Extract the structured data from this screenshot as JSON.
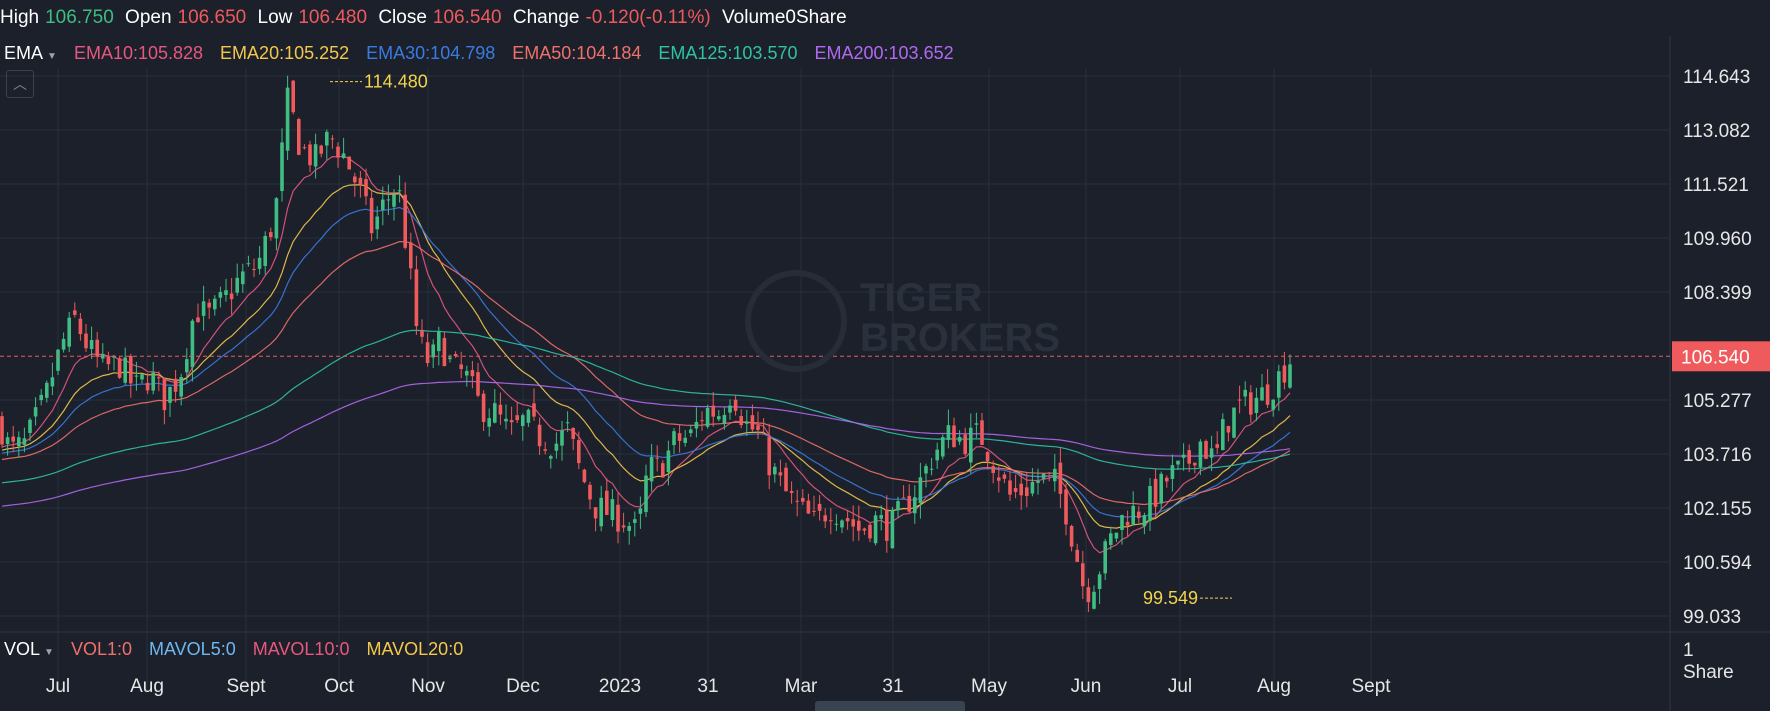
{
  "header": {
    "high_label": "High",
    "high": "106.750",
    "open_label": "Open",
    "open": "106.650",
    "low_label": "Low",
    "low": "106.480",
    "close_label": "Close",
    "close": "106.540",
    "change_label": "Change",
    "change": "-0.120(-0.11%)",
    "volume_label": "Volume",
    "volume": "0Share"
  },
  "ema": {
    "label": "EMA",
    "items": [
      {
        "text": "EMA10:105.828",
        "color": "#e8577e"
      },
      {
        "text": "EMA20:105.252",
        "color": "#f3c84b"
      },
      {
        "text": "EMA30:104.798",
        "color": "#3a7be0"
      },
      {
        "text": "EMA50:104.184",
        "color": "#f0706b"
      },
      {
        "text": "EMA125:103.570",
        "color": "#2fc2a5"
      },
      {
        "text": "EMA200:103.652",
        "color": "#b268f0"
      }
    ]
  },
  "vol": {
    "label": "VOL",
    "items": [
      {
        "text": "VOL1:0",
        "color": "#f0706b"
      },
      {
        "text": "MAVOL5:0",
        "color": "#6fb7f0"
      },
      {
        "text": "MAVOL10:0",
        "color": "#e8577e"
      },
      {
        "text": "MAVOL20:0",
        "color": "#f3c84b"
      }
    ],
    "axis_value": "1",
    "axis_unit": "Share"
  },
  "watermark": [
    "TIGER",
    "BROKERS"
  ],
  "colors": {
    "up": "#3fbd83",
    "down": "#ef5a5d",
    "grid": "#2a313c",
    "bg": "#1b202a",
    "last_price_bg": "#ef5a5d",
    "annotation": "#f3d44b"
  },
  "chart_data": {
    "type": "candlestick",
    "ylim": [
      98.5,
      115.5
    ],
    "y_ticks": [
      "114.643",
      "113.082",
      "111.521",
      "109.960",
      "108.399",
      "105.277",
      "103.716",
      "102.155",
      "100.594",
      "99.033"
    ],
    "y_tick_values": [
      114.643,
      113.082,
      111.521,
      109.96,
      108.399,
      105.277,
      103.716,
      102.155,
      100.594,
      99.033
    ],
    "last_price": "106.540",
    "x_labels": [
      "Jul",
      "Aug",
      "Sept",
      "Oct",
      "Nov",
      "Dec",
      "2023",
      "31",
      "Mar",
      "31",
      "May",
      "Jun",
      "Jul",
      "Aug",
      "Sept"
    ],
    "annotations": [
      {
        "text": "114.480",
        "type": "high"
      },
      {
        "text": "99.549",
        "type": "low"
      }
    ],
    "close_path_anchors": [
      [
        0,
        104.6
      ],
      [
        10,
        103.8
      ],
      [
        25,
        104.0
      ],
      [
        45,
        105.3
      ],
      [
        62,
        106.9
      ],
      [
        75,
        107.6
      ],
      [
        88,
        106.8
      ],
      [
        102,
        106.2
      ],
      [
        120,
        106.3
      ],
      [
        135,
        105.6
      ],
      [
        150,
        106.0
      ],
      [
        165,
        105.3
      ],
      [
        180,
        106.0
      ],
      [
        195,
        107.9
      ],
      [
        210,
        107.7
      ],
      [
        225,
        108.2
      ],
      [
        240,
        108.8
      ],
      [
        258,
        109.2
      ],
      [
        275,
        110.6
      ],
      [
        288,
        114.0
      ],
      [
        300,
        112.6
      ],
      [
        315,
        112.2
      ],
      [
        330,
        112.9
      ],
      [
        345,
        112.3
      ],
      [
        360,
        111.3
      ],
      [
        372,
        110.2
      ],
      [
        385,
        111.0
      ],
      [
        398,
        111.5
      ],
      [
        410,
        108.9
      ],
      [
        418,
        107.0
      ],
      [
        430,
        106.3
      ],
      [
        440,
        107.0
      ],
      [
        452,
        106.2
      ],
      [
        465,
        106.0
      ],
      [
        480,
        105.1
      ],
      [
        495,
        104.9
      ],
      [
        510,
        104.3
      ],
      [
        525,
        104.7
      ],
      [
        540,
        104.2
      ],
      [
        555,
        104.0
      ],
      [
        568,
        104.4
      ],
      [
        580,
        103.2
      ],
      [
        595,
        102.2
      ],
      [
        610,
        102.0
      ],
      [
        625,
        101.8
      ],
      [
        638,
        101.4
      ],
      [
        648,
        103.3
      ],
      [
        660,
        103.3
      ],
      [
        675,
        104.1
      ],
      [
        690,
        104.2
      ],
      [
        705,
        105.0
      ],
      [
        720,
        104.9
      ],
      [
        732,
        105.6
      ],
      [
        745,
        104.6
      ],
      [
        758,
        104.3
      ],
      [
        770,
        103.4
      ],
      [
        785,
        102.6
      ],
      [
        800,
        102.1
      ],
      [
        815,
        101.7
      ],
      [
        830,
        102.2
      ],
      [
        845,
        101.9
      ],
      [
        860,
        101.5
      ],
      [
        875,
        101.8
      ],
      [
        890,
        101.6
      ],
      [
        905,
        102.2
      ],
      [
        920,
        102.9
      ],
      [
        935,
        103.8
      ],
      [
        950,
        104.3
      ],
      [
        965,
        104.1
      ],
      [
        980,
        104.3
      ],
      [
        995,
        103.4
      ],
      [
        1010,
        102.5
      ],
      [
        1025,
        102.7
      ],
      [
        1040,
        103.0
      ],
      [
        1055,
        102.9
      ],
      [
        1065,
        102.2
      ],
      [
        1075,
        101.0
      ],
      [
        1085,
        99.7
      ],
      [
        1095,
        100.1
      ],
      [
        1110,
        101.2
      ],
      [
        1125,
        102.0
      ],
      [
        1140,
        102.1
      ],
      [
        1155,
        102.5
      ],
      [
        1170,
        103.1
      ],
      [
        1185,
        103.3
      ],
      [
        1200,
        104.1
      ],
      [
        1215,
        103.5
      ],
      [
        1225,
        104.6
      ],
      [
        1240,
        105.1
      ],
      [
        1255,
        105.3
      ],
      [
        1270,
        105.6
      ],
      [
        1280,
        106.0
      ],
      [
        1292,
        106.54
      ]
    ]
  }
}
